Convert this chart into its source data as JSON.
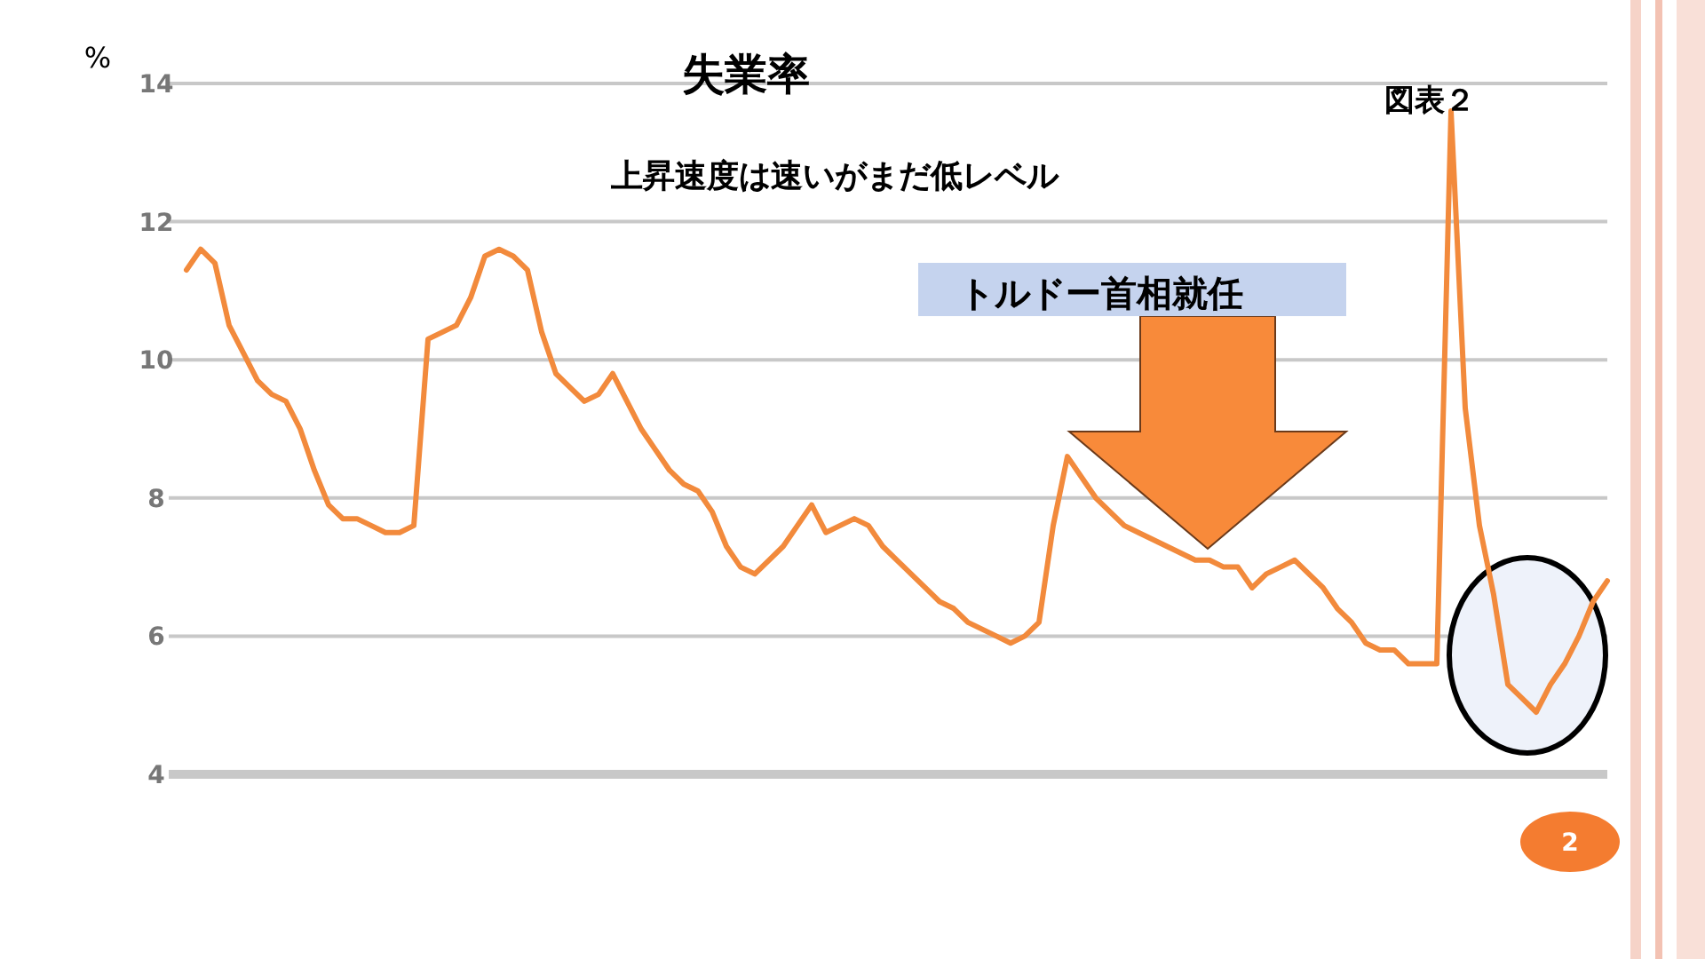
{
  "chart_data": {
    "type": "line",
    "title": "失業率",
    "subtitle": "上昇速度は速いがまだ低レベル",
    "ylabel": "%",
    "annotations": [
      "図表２",
      "トルドー首相就任",
      "2"
    ],
    "categories": [
      null,
      null,
      null,
      null,
      null,
      null,
      null,
      null,
      null,
      null,
      null,
      null,
      null,
      null,
      null,
      null,
      null,
      null,
      null,
      null,
      null,
      null,
      null,
      null,
      null,
      null,
      null,
      null,
      null,
      null,
      null,
      null,
      null,
      null,
      null,
      null,
      null,
      null,
      null,
      null,
      null,
      null,
      null,
      null,
      null,
      null,
      null,
      null,
      null,
      null,
      null,
      null,
      null,
      null,
      null,
      null,
      null,
      null,
      null,
      null,
      null,
      null,
      null,
      null,
      null,
      null,
      null,
      null,
      null,
      null,
      null,
      null,
      null,
      null,
      null,
      null,
      null,
      null,
      null,
      null,
      null,
      null,
      null,
      null,
      null,
      null,
      null,
      null,
      null,
      null,
      null,
      null,
      null,
      null,
      null,
      null,
      null,
      null,
      null,
      null,
      null
    ],
    "series": [
      {
        "color": "#f28a3c",
        "values": [
          11.3,
          11.6,
          11.4,
          10.5,
          10.1,
          9.7,
          9.5,
          9.4,
          9.0,
          8.4,
          7.9,
          7.7,
          7.7,
          7.6,
          7.5,
          7.5,
          7.6,
          10.3,
          10.4,
          10.5,
          10.9,
          11.5,
          11.6,
          11.5,
          11.3,
          10.4,
          9.8,
          9.6,
          9.4,
          9.5,
          9.8,
          9.4,
          9.0,
          8.7,
          8.4,
          8.2,
          8.1,
          7.8,
          7.3,
          7.0,
          6.9,
          7.1,
          7.3,
          7.6,
          7.9,
          7.5,
          7.6,
          7.7,
          7.6,
          7.3,
          7.1,
          6.9,
          6.7,
          6.5,
          6.4,
          6.2,
          6.1,
          6.0,
          5.9,
          6.0,
          6.2,
          7.6,
          8.6,
          8.3,
          8.0,
          7.8,
          7.6,
          7.5,
          7.4,
          7.3,
          7.2,
          7.1,
          7.1,
          7.0,
          7.0,
          6.7,
          6.9,
          7.0,
          7.1,
          6.9,
          6.7,
          6.4,
          6.2,
          5.9,
          5.8,
          5.8,
          5.6,
          5.6,
          5.6,
          13.6,
          9.3,
          7.6,
          6.6,
          5.3,
          5.1,
          4.9,
          5.3,
          5.6,
          6.0,
          6.5,
          6.8
        ]
      }
    ],
    "ylim": [
      4,
      14
    ],
    "yticks": [
      4,
      6,
      8,
      10,
      12,
      14
    ],
    "grid": "y"
  }
}
